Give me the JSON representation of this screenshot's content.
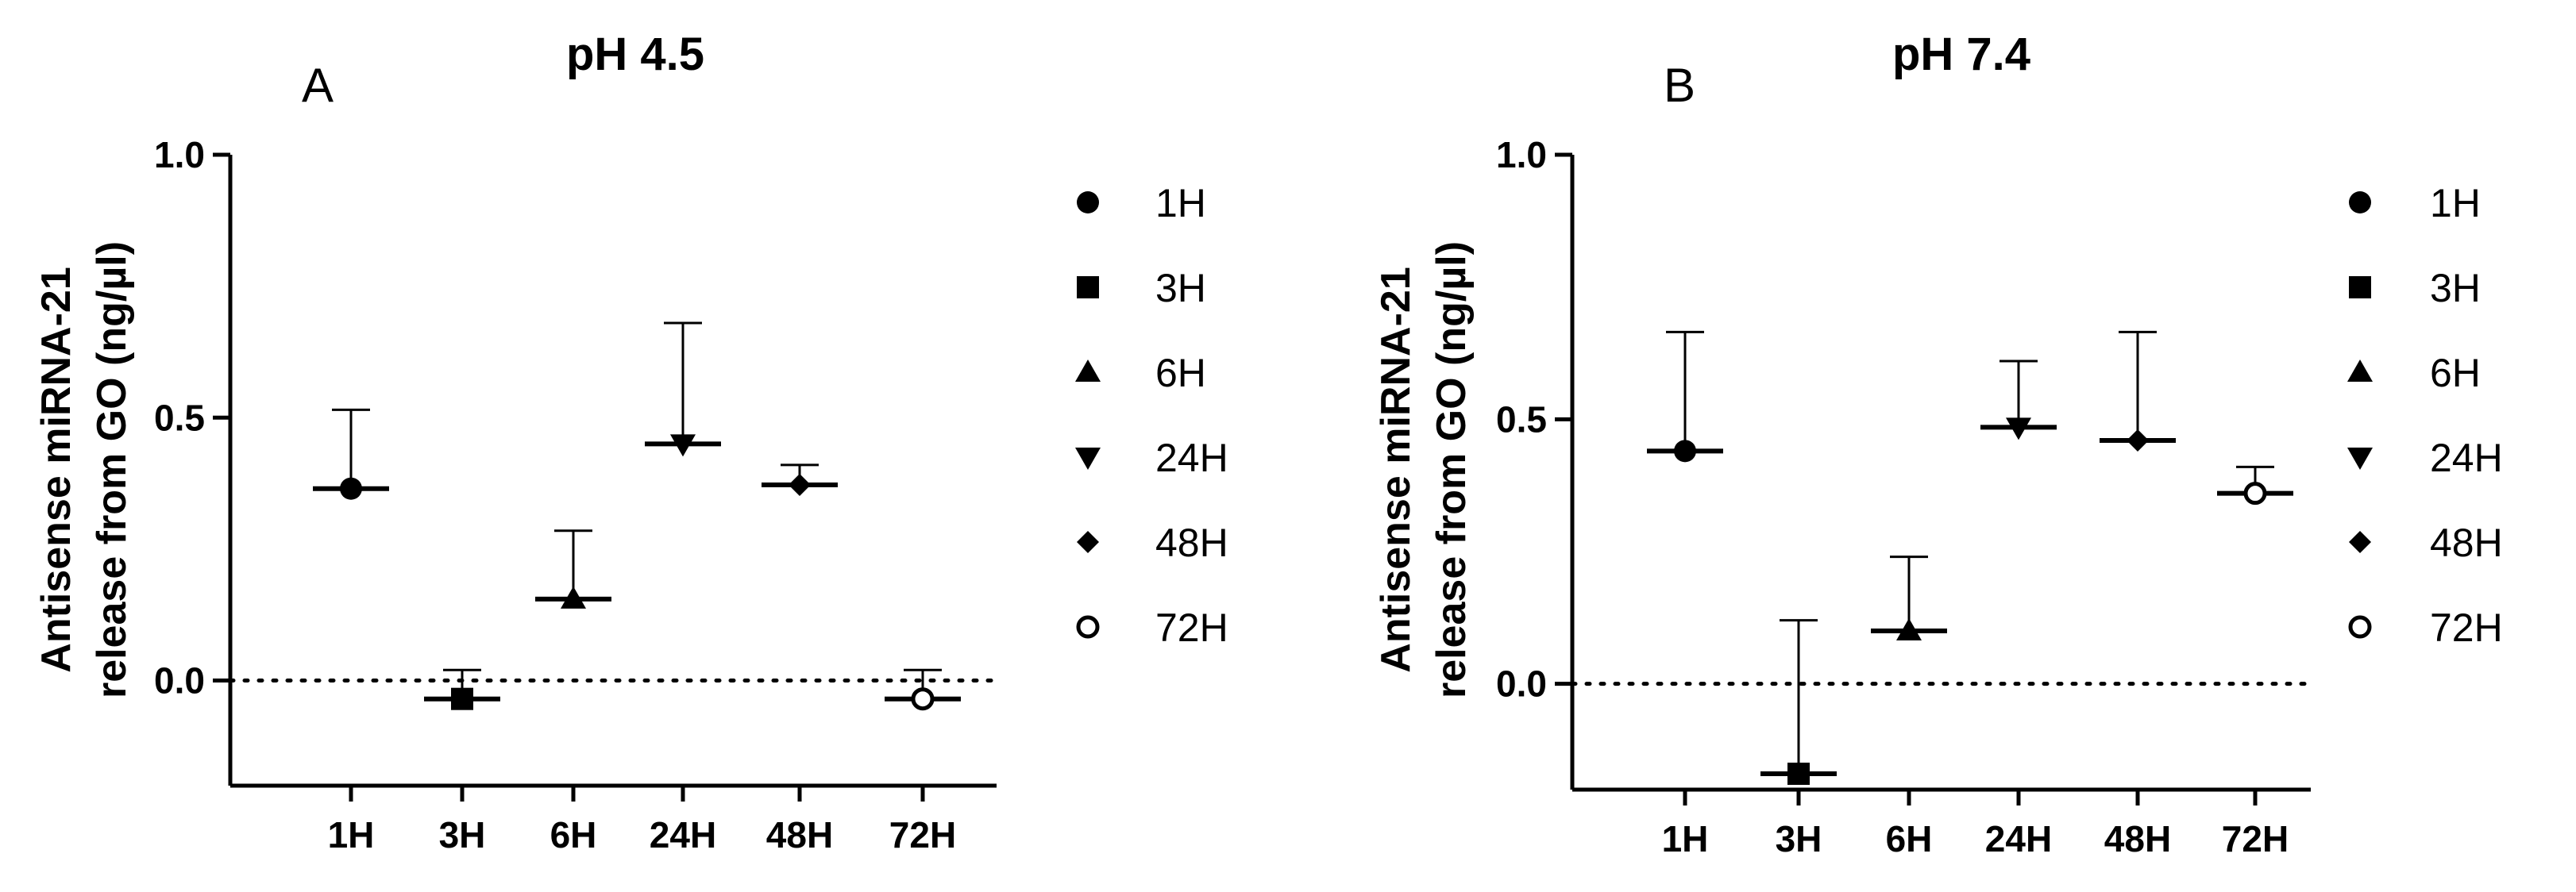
{
  "chart_data": [
    {
      "type": "scatter",
      "panel_letter": "A",
      "title": "pH 4.5",
      "xlabel": "",
      "ylabel_line1": "Antisense miRNA-21",
      "ylabel_line2": "release from GO (ng/µl)",
      "ylim": [
        -0.2,
        1.0
      ],
      "yticks": [
        "0.0",
        "0.5",
        "1.0"
      ],
      "reference_line": 0.0,
      "categories": [
        "1H",
        "3H",
        "6H",
        "24H",
        "48H",
        "72H"
      ],
      "values": [
        0.365,
        -0.035,
        0.155,
        0.45,
        0.372,
        -0.035
      ],
      "error_upper": [
        0.515,
        0.02,
        0.285,
        0.68,
        0.41,
        0.02
      ],
      "legend_items": [
        "1H",
        "3H",
        "6H",
        "24H",
        "48H",
        "72H"
      ],
      "markers": [
        "circle",
        "square",
        "triangle-up",
        "triangle-down",
        "diamond",
        "circle-open"
      ],
      "color": "#000000"
    },
    {
      "type": "scatter",
      "panel_letter": "B",
      "title": "pH 7.4",
      "xlabel": "",
      "ylabel_line1": "Antisense miRNA-21",
      "ylabel_line2": "release from GO (ng/µl)",
      "ylim": [
        -0.2,
        1.0
      ],
      "yticks": [
        "0.0",
        "0.5",
        "1.0"
      ],
      "reference_line": 0.0,
      "categories": [
        "1H",
        "3H",
        "6H",
        "24H",
        "48H",
        "72H"
      ],
      "values": [
        0.44,
        -0.17,
        0.1,
        0.485,
        0.46,
        0.36
      ],
      "error_upper": [
        0.665,
        0.12,
        0.24,
        0.61,
        0.665,
        0.41
      ],
      "legend_items": [
        "1H",
        "3H",
        "6H",
        "24H",
        "48H",
        "72H"
      ],
      "markers": [
        "circle",
        "square",
        "triangle-up",
        "triangle-down",
        "diamond",
        "circle-open"
      ],
      "color": "#000000"
    }
  ]
}
